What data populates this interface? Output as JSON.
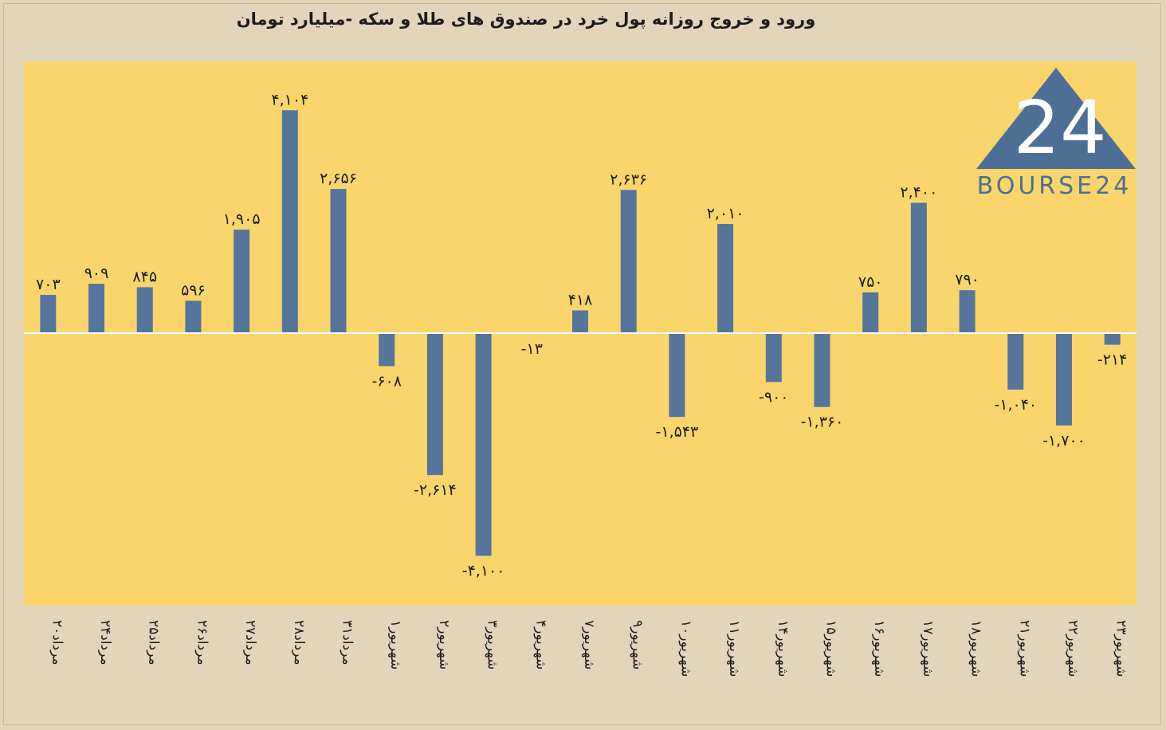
{
  "colors": {
    "page_background": "#e3d5b9",
    "plot_background": "#fad56b",
    "bar": "#56759b",
    "text": "#1c1c1c",
    "logo": "#4e6f95"
  },
  "logo": {
    "name": "bourse24-logo",
    "number": "24",
    "text": "BOURSE24"
  },
  "chart_data": {
    "type": "bar",
    "title": "ورود و خروج روزانه پول خرد در صندوق های طلا و سکه -میلیارد تومان",
    "xlabel": "",
    "ylabel": "",
    "ylim": [
      -4900,
      5000
    ],
    "grid": false,
    "legend": "none",
    "categories": [
      "۲۰مرداد",
      "۲۴مرداد",
      "۲۵مرداد",
      "۲۶مرداد",
      "۲۷مرداد",
      "۲۸مرداد",
      "۳۱مرداد",
      "۱شهریور",
      "۲شهریور",
      "۳شهریور",
      "۴شهریور",
      "۷شهریور",
      "۹شهریور",
      "۱۰شهریور",
      "۱۱شهریور",
      "۱۴شهریور",
      "۱۵شهریور",
      "۱۶شهریور",
      "۱۷شهریور",
      "۱۸شهریور",
      "۲۱شهریور",
      "۲۲شهریور",
      "۲۳شهریور"
    ],
    "values": [
      703,
      909,
      845,
      596,
      1905,
      4104,
      2656,
      -608,
      -2614,
      -4100,
      -13,
      418,
      2636,
      -1543,
      2010,
      -900,
      -1360,
      750,
      2400,
      790,
      -1040,
      -1700,
      -214
    ],
    "data_labels": [
      "۷۰۳",
      "۹۰۹",
      "۸۴۵",
      "۵۹۶",
      "۱,۹۰۵",
      "۴,۱۰۴",
      "۲,۶۵۶",
      "-۶۰۸",
      "-۲,۶۱۴",
      "-۴,۱۰۰",
      "-۱۳",
      "۴۱۸",
      "۲,۶۳۶",
      "-۱,۵۴۳",
      "۲,۰۱۰",
      "-۹۰۰",
      "-۱,۳۶۰",
      "۷۵۰",
      "۲,۴۰۰",
      "۷۹۰",
      "-۱,۰۴۰",
      "-۱,۷۰۰",
      "-۲۱۴"
    ]
  }
}
